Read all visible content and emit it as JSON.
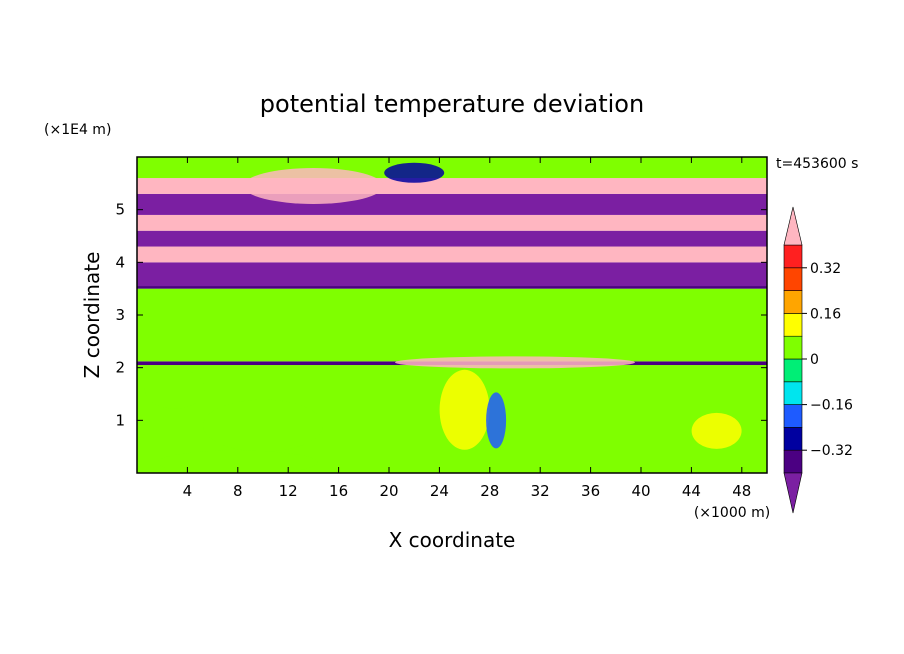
{
  "chart_data": {
    "type": "heatmap",
    "title": "potential temperature deviation",
    "xlabel": "X coordinate",
    "ylabel": "Z coordinate",
    "x_unit": "(×1000 m)",
    "y_unit": "(×1E4 m)",
    "time_label": "t=453600 s",
    "xlim": [
      0,
      50
    ],
    "ylim": [
      0,
      6
    ],
    "x_ticks": [
      4,
      8,
      12,
      16,
      20,
      24,
      28,
      32,
      36,
      40,
      44,
      48
    ],
    "y_ticks": [
      1,
      2,
      3,
      4,
      5
    ],
    "colorbar": {
      "levels": [
        -0.4,
        -0.32,
        -0.24,
        -0.16,
        -0.08,
        0,
        0.08,
        0.16,
        0.24,
        0.32,
        0.4
      ],
      "tick_labels": [
        "0.32",
        "0.16",
        "0",
        "−0.16",
        "−0.32"
      ],
      "tick_values": [
        0.32,
        0.16,
        0,
        -0.16,
        -0.32
      ],
      "colors": [
        "#7b1fa2",
        "#4b0082",
        "#0000a0",
        "#1e5bff",
        "#00e5ee",
        "#00ee76",
        "#7fff00",
        "#ffff00",
        "#ffa500",
        "#ff4500",
        "#ff2020",
        "#ffb6c1"
      ],
      "extend": "both"
    },
    "layers": [
      {
        "z": [
          0.0,
          2.05
        ],
        "value": 0.0,
        "description_color": "green"
      },
      {
        "z": [
          2.05,
          2.12
        ],
        "value": -0.4,
        "description_color": "navy"
      },
      {
        "z": [
          2.12,
          3.5
        ],
        "value": 0.05,
        "description_color": "green"
      },
      {
        "z": [
          3.5,
          3.55
        ],
        "value": -0.4,
        "description_color": "navy"
      },
      {
        "z": [
          3.55,
          4.0
        ],
        "value": -0.45,
        "description_color": "purple"
      },
      {
        "z": [
          4.0,
          4.3
        ],
        "value": 0.45,
        "description_color": "pink"
      },
      {
        "z": [
          4.3,
          4.6
        ],
        "value": -0.45,
        "description_color": "purple"
      },
      {
        "z": [
          4.6,
          4.9
        ],
        "value": 0.45,
        "description_color": "pink"
      },
      {
        "z": [
          4.9,
          5.3
        ],
        "value": -0.45,
        "description_color": "purple"
      },
      {
        "z": [
          5.3,
          5.6
        ],
        "value": 0.45,
        "description_color": "pink"
      },
      {
        "z": [
          5.6,
          6.0
        ],
        "value": 0.0,
        "description_color": "green"
      }
    ]
  }
}
